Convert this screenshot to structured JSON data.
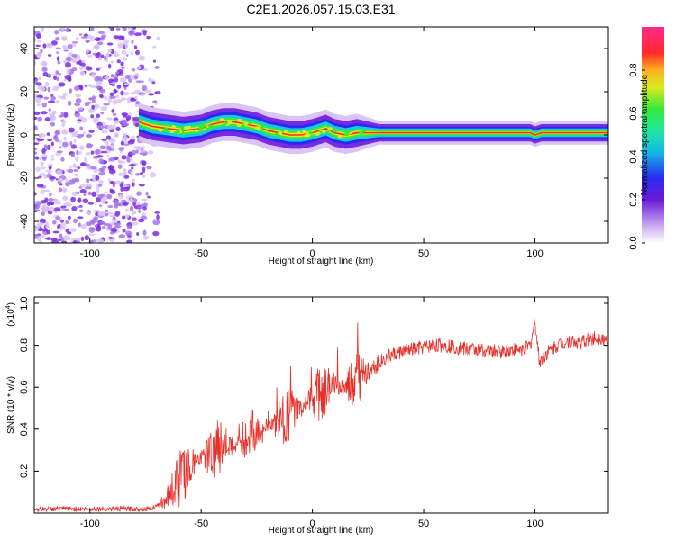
{
  "page_title": "C2E1.2026.057.15.03.E31",
  "colors": {
    "background": "#ffffff",
    "snr_line": "#e8302a",
    "spectrogram_noise": "#7a2be0",
    "ridge_core": "#ff2a2a"
  },
  "chart_data": [
    {
      "type": "heatmap",
      "title": "C2E1.2026.057.15.03.E31",
      "xlabel": "Height of straight line (km)",
      "ylabel": "Frequency (Hz)",
      "xlim": [
        -125,
        133
      ],
      "ylim": [
        -50,
        50
      ],
      "x_ticks": [
        -100,
        -50,
        0,
        50,
        100
      ],
      "x_tick_labels": [
        "-100",
        "-50",
        "0",
        "50",
        "100"
      ],
      "y_ticks": [
        -40,
        -20,
        0,
        20,
        40
      ],
      "y_tick_labels": [
        "-40",
        "-20",
        "0",
        "20",
        "40"
      ],
      "colorbar": {
        "label": "Normalized spectral amplitude",
        "range": [
          0,
          1
        ],
        "ticks": [
          0.0,
          0.2,
          0.4,
          0.6,
          0.8
        ],
        "tick_labels": [
          "0.0",
          "0.2",
          "0.4",
          "0.6",
          "0.8"
        ],
        "colormap": "rainbow (white-violet-blue-cyan-green-yellow-red-magenta)"
      },
      "noise_region_x": [
        -125,
        -75
      ],
      "ridge": {
        "x": [
          -78,
          -72,
          -65,
          -58,
          -50,
          -45,
          -40,
          -35,
          -30,
          -25,
          -20,
          -15,
          -10,
          -5,
          0,
          3,
          6,
          10,
          15,
          20,
          30,
          50,
          70,
          90,
          98,
          100,
          103,
          133
        ],
        "frequency_hz": [
          6,
          4,
          3,
          2,
          3,
          5,
          6,
          6,
          5,
          4,
          2,
          1,
          0,
          0,
          1,
          2,
          3,
          1,
          0,
          1,
          1,
          1,
          1,
          1,
          1,
          0,
          1,
          1
        ]
      }
    },
    {
      "type": "line",
      "xlabel": "Height of straight line (km)",
      "ylabel": "SNR (10 * v/v)",
      "y_multiplier_label": "(x10",
      "y_multiplier_exp": "4",
      "y_multiplier_close": ")",
      "xlim": [
        -125,
        133
      ],
      "ylim": [
        0,
        1.03
      ],
      "x_ticks": [
        -100,
        -50,
        0,
        50,
        100
      ],
      "x_tick_labels": [
        "-100",
        "-50",
        "0",
        "50",
        "100"
      ],
      "y_ticks": [
        0.2,
        0.4,
        0.6,
        0.8,
        1.0
      ],
      "y_tick_labels": [
        "0.2",
        "0.4",
        "0.6",
        "0.8",
        "1.0"
      ],
      "series": [
        {
          "name": "SNR",
          "x": [
            -125,
            -110,
            -90,
            -75,
            -70,
            -67,
            -64,
            -60,
            -55,
            -50,
            -45,
            -40,
            -35,
            -30,
            -25,
            -20,
            -15,
            -10,
            -5,
            0,
            5,
            10,
            15,
            20,
            25,
            30,
            35,
            40,
            45,
            50,
            55,
            60,
            65,
            70,
            75,
            80,
            85,
            90,
            95,
            98,
            100,
            102,
            105,
            110,
            115,
            120,
            125,
            130,
            133
          ],
          "values": [
            0.02,
            0.02,
            0.02,
            0.02,
            0.03,
            0.05,
            0.1,
            0.16,
            0.22,
            0.26,
            0.29,
            0.32,
            0.33,
            0.35,
            0.38,
            0.41,
            0.44,
            0.47,
            0.5,
            0.54,
            0.58,
            0.62,
            0.58,
            0.63,
            0.68,
            0.72,
            0.75,
            0.77,
            0.78,
            0.79,
            0.8,
            0.8,
            0.79,
            0.78,
            0.78,
            0.77,
            0.77,
            0.78,
            0.78,
            0.8,
            0.92,
            0.72,
            0.76,
            0.8,
            0.82,
            0.81,
            0.83,
            0.84,
            0.8
          ]
        }
      ]
    }
  ]
}
